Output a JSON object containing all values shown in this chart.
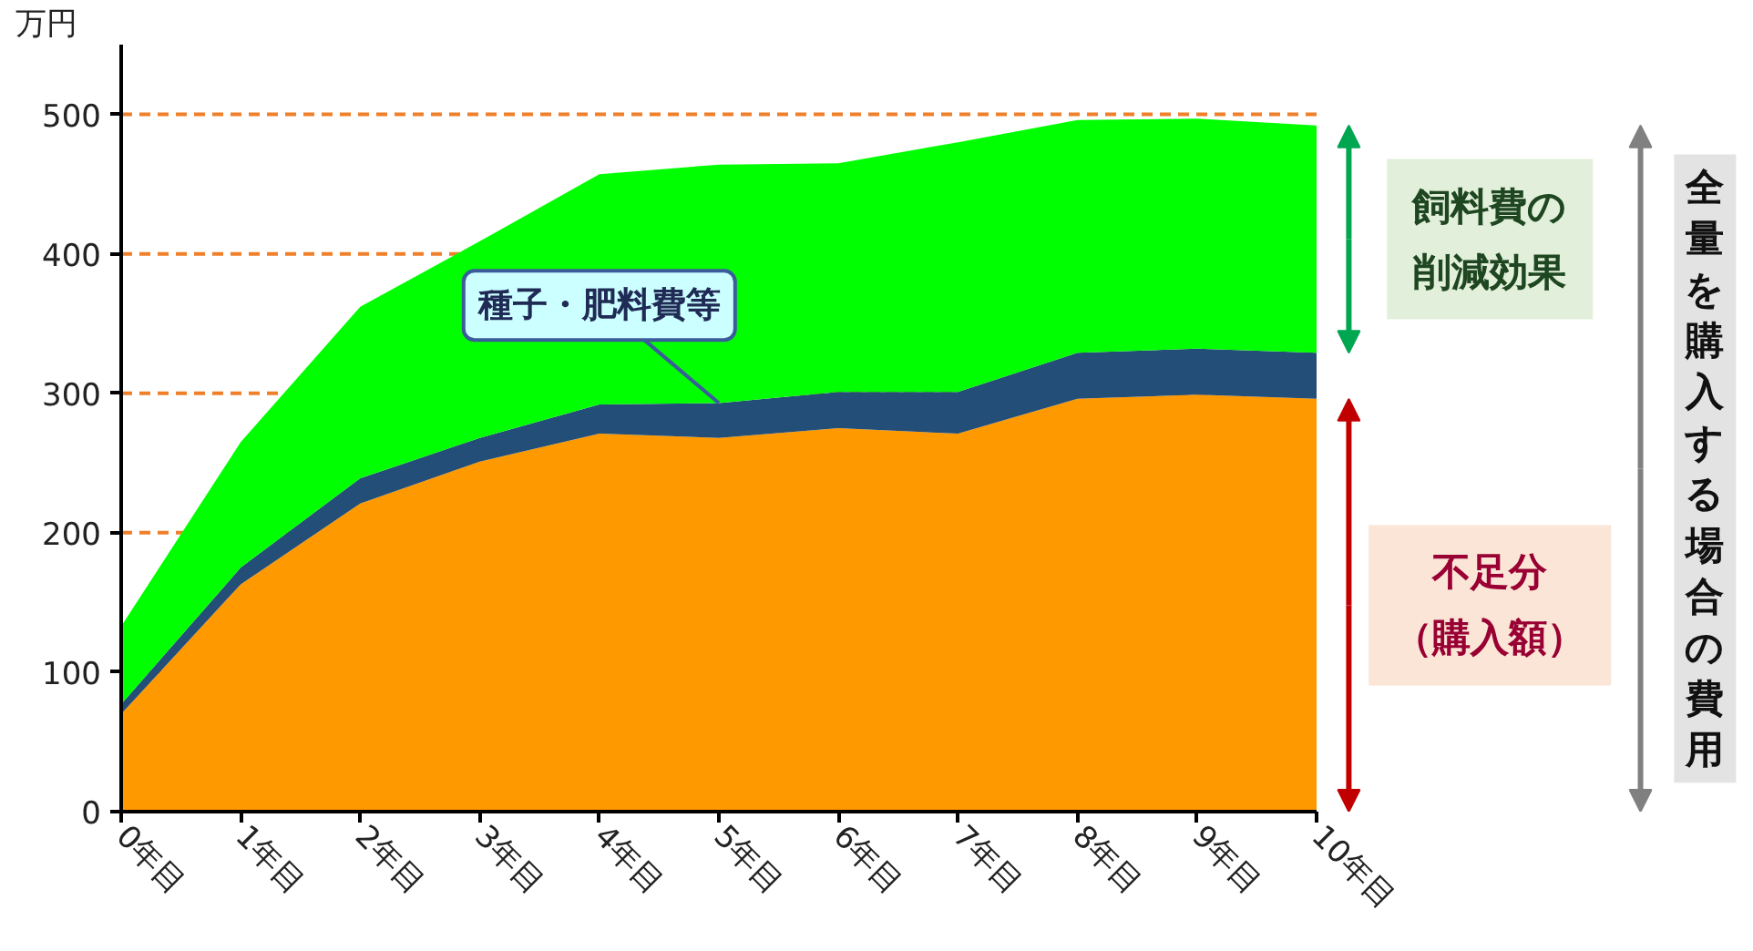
{
  "chart_data": {
    "type": "area",
    "stacked": true,
    "ylabel": "万円",
    "categories": [
      "0年目",
      "1年目",
      "2年目",
      "3年目",
      "4年目",
      "5年目",
      "6年目",
      "7年目",
      "8年目",
      "9年目",
      "10年目"
    ],
    "ylim": [
      0,
      550
    ],
    "yticks": [
      0,
      100,
      200,
      300,
      400,
      500
    ],
    "ref_lines": [
      {
        "axis": "y",
        "value": 100,
        "color": "#f07f2a",
        "line_style": "dashed"
      },
      {
        "axis": "y",
        "value": 200,
        "color": "#f07f2a",
        "line_style": "dashed"
      },
      {
        "axis": "y",
        "value": 300,
        "color": "#f07f2a",
        "line_style": "dashed"
      },
      {
        "axis": "y",
        "value": 400,
        "color": "#f07f2a",
        "line_style": "dashed"
      },
      {
        "axis": "y",
        "value": 500,
        "color": "#f07f2a",
        "line_style": "dashed"
      }
    ],
    "series": [
      {
        "name": "不足分（購入額）",
        "color": "#ff9900",
        "values": [
          70,
          163,
          221,
          251,
          271,
          268,
          275,
          271,
          296,
          299,
          296
        ]
      },
      {
        "name": "種子・肥料費等",
        "color": "#234e77",
        "values": [
          7,
          12,
          18,
          17,
          21,
          25,
          26,
          30,
          33,
          33,
          33
        ]
      },
      {
        "name": "飼料費の削減効果",
        "color": "#00ff00",
        "values": [
          56,
          90,
          123,
          141,
          165,
          171,
          164,
          179,
          167,
          165,
          163
        ]
      }
    ],
    "annotations": [
      "全量を購入する場合の費用"
    ]
  }
}
